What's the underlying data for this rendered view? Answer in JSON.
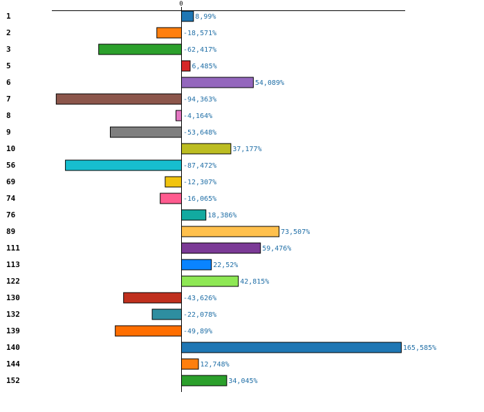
{
  "chart_data": {
    "type": "bar",
    "orientation": "horizontal",
    "title": "",
    "xlabel": "",
    "ylabel": "",
    "zero_tick_label": "0",
    "xlim": [
      -117,
      200
    ],
    "categories": [
      "1",
      "2",
      "3",
      "5",
      "6",
      "7",
      "8",
      "9",
      "10",
      "56",
      "69",
      "74",
      "76",
      "89",
      "111",
      "113",
      "122",
      "130",
      "132",
      "139",
      "140",
      "144",
      "152"
    ],
    "values": [
      8.99,
      -18.571,
      -62.417,
      6.485,
      54.089,
      -94.363,
      -4.164,
      -53.648,
      37.177,
      -87.472,
      -12.307,
      -16.065,
      18.386,
      73.507,
      59.476,
      22.52,
      42.815,
      -43.626,
      -22.078,
      -49.89,
      165.585,
      12.748,
      34.045
    ],
    "value_labels": [
      "8,99%",
      "-18,571%",
      "-62,417%",
      "6,485%",
      "54,089%",
      "-94,363%",
      "-4,164%",
      "-53,648%",
      "37,177%",
      "-87,472%",
      "-12,307%",
      "-16,065%",
      "18,386%",
      "73,507%",
      "59,476%",
      "22,52%",
      "42,815%",
      "-43,626%",
      "-22,078%",
      "-49,89%",
      "165,585%",
      "12,748%",
      "34,045%"
    ],
    "colors": [
      "#1f77b4",
      "#ff7f0e",
      "#2ca02c",
      "#d62728",
      "#9467bd",
      "#8c564b",
      "#e377c2",
      "#7f7f7f",
      "#bcbd22",
      "#17becf",
      "#f1c40f",
      "#ff5b8f",
      "#12aaa0",
      "#ffc04d",
      "#7b3a96",
      "#0a84ff",
      "#8ee854",
      "#c0301e",
      "#2e8ea0",
      "#ff6e00",
      "#1f77b4",
      "#ff7f0e",
      "#2ca02c"
    ],
    "label_color": "#1f6ea6",
    "grid": false,
    "legend": "none"
  }
}
